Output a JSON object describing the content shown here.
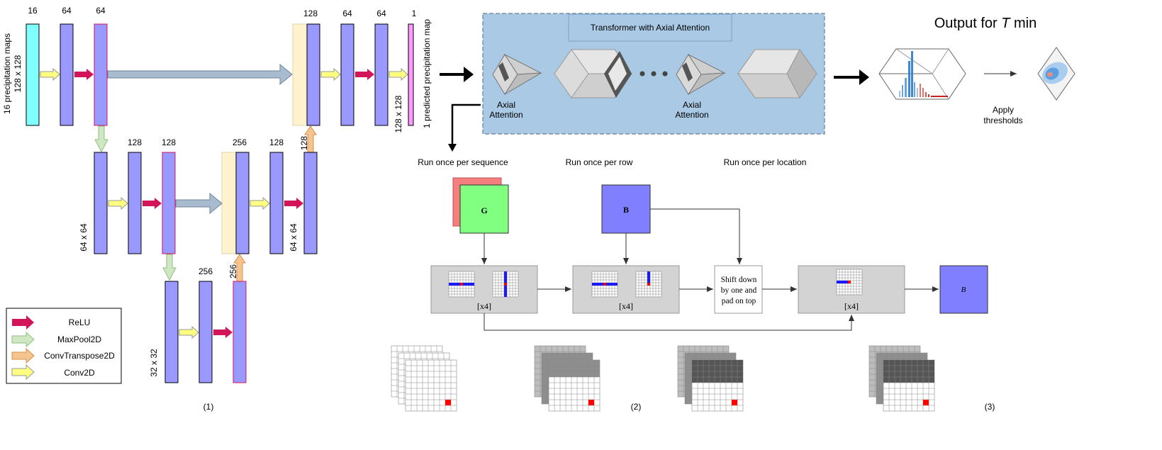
{
  "unet": {
    "top_channels": [
      "16",
      "64",
      "64"
    ],
    "top_right_channels": [
      "128",
      "64",
      "64",
      "1"
    ],
    "mid_channels": [
      "128",
      "128"
    ],
    "mid_right_channels": [
      "256",
      "128"
    ],
    "bottom_channel": "256",
    "input_label": "16 precipitation  maps",
    "input_size": "128 x 128",
    "output_label": "1 predicted precipitation  map",
    "output_size": "128 x 128",
    "size_64": "64 x 64",
    "size_32": "32 x 32",
    "up_128": "128",
    "up_256": "256",
    "panel_label": "(1)"
  },
  "legend": {
    "items": [
      {
        "label": "ReLU",
        "color": "#d4145a"
      },
      {
        "label": "MaxPool2D",
        "color": "#cfe8c3"
      },
      {
        "label": "ConvTranspose2D",
        "color": "#f6c48f"
      },
      {
        "label": "Conv2D",
        "color": "#ffff80"
      }
    ]
  },
  "transformer": {
    "title": "Transformer with Axial Attention",
    "axial_a": "Axial\nAttention",
    "axial_b": "Axial\nAttention",
    "output_title_prefix": "Output for ",
    "output_title_var": "T",
    "output_title_suffix": " min",
    "apply_thresholds": "Apply\nthresholds"
  },
  "axial": {
    "run_seq": "Run once per sequence",
    "run_row": "Run once per row",
    "run_loc": "Run once per location",
    "g_label": "G",
    "b_label": "B",
    "b_out_label": "B",
    "x4": "[x4]",
    "shift_text": "Shift down\nby one and\npad on top",
    "panel2": "(2)",
    "panel3": "(3)"
  },
  "colors": {
    "block": "#9999ff",
    "input_block": "#80ffff",
    "output_block": "#ff99ff",
    "concat": "#fff2cc",
    "skip_arrow": "#a9bccf",
    "panel_bg": "#a9c9e4",
    "g_fill": "#80ff80",
    "g_back": "#f47f7f",
    "b_fill": "#7f7fff",
    "proc": "#d3d3d3"
  }
}
